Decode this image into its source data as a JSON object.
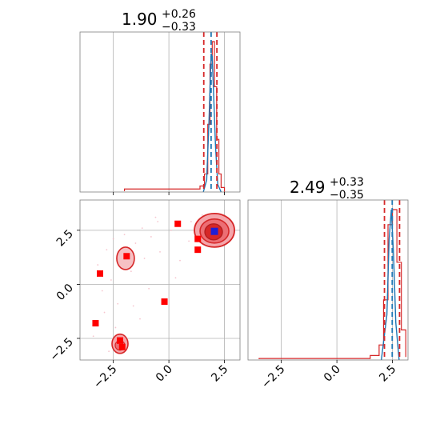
{
  "chart_data": {
    "type": "corner",
    "colors": {
      "posterior": "#d62728",
      "truth": "#1f77b4",
      "sample": "#ff0000",
      "grid": "#b0b0b0",
      "frame": "#808080"
    },
    "parameters": [
      {
        "median": 1.9,
        "plus": 0.26,
        "minus": 0.33,
        "title": "1.90",
        "title_plus": "+0.26",
        "title_minus": "−0.33"
      },
      {
        "median": 2.49,
        "plus": 0.33,
        "minus": 0.35,
        "title": "2.49",
        "title_plus": "+0.33",
        "title_minus": "−0.35"
      }
    ],
    "xlim_param1": [
      -4.0,
      3.2
    ],
    "xlim_param2": [
      -4.0,
      3.2
    ],
    "ylim_param2": [
      -3.5,
      3.9
    ],
    "ticks": [
      -2.5,
      0.0,
      2.5
    ],
    "tick_labels": [
      "−2.5",
      "0.0",
      "2.5"
    ],
    "grid": true,
    "hist1_red": {
      "x": [
        -2.0,
        -1.6,
        1.0,
        1.4,
        1.6,
        1.75,
        1.85,
        1.95,
        2.05,
        2.15,
        2.25,
        2.35,
        2.5
      ],
      "y": [
        0.02,
        0.02,
        0.02,
        0.04,
        0.12,
        0.45,
        0.85,
        1.0,
        0.7,
        0.35,
        0.12,
        0.03,
        0.0
      ]
    },
    "hist1_blue": {
      "x": [
        1.55,
        1.7,
        1.8,
        1.9,
        1.95,
        2.0,
        2.1,
        2.2,
        2.35
      ],
      "y": [
        0.0,
        0.08,
        0.45,
        0.92,
        0.9,
        0.7,
        0.3,
        0.05,
        0.0
      ]
    },
    "hist1_vlines_red": [
      1.57,
      2.16
    ],
    "hist1_vlines_blue": [
      1.9
    ],
    "hist2_red": {
      "x": [
        -3.5,
        -2.0,
        0.5,
        1.5,
        1.9,
        2.1,
        2.3,
        2.5,
        2.7,
        2.9,
        3.1
      ],
      "y": [
        0.01,
        0.01,
        0.01,
        0.03,
        0.1,
        0.4,
        0.9,
        1.0,
        0.65,
        0.2,
        0.02
      ]
    },
    "hist2_blue": {
      "x": [
        2.0,
        2.25,
        2.35,
        2.45,
        2.55,
        2.65,
        2.8
      ],
      "y": [
        0.0,
        0.3,
        0.8,
        1.0,
        0.7,
        0.25,
        0.0
      ]
    },
    "hist2_vlines_red": [
      2.14,
      2.82
    ],
    "hist2_vlines_blue": [
      2.49
    ],
    "samples": {
      "x": [
        0.4,
        -1.9,
        -3.1,
        -0.2,
        1.3,
        1.3,
        -3.3,
        -2.2,
        -2.1,
        -2.2
      ],
      "y": [
        2.8,
        1.3,
        0.5,
        -0.8,
        2.1,
        1.6,
        -1.8,
        -2.6,
        -2.9,
        -2.6
      ]
    },
    "truth_point": {
      "x": 2.05,
      "y": 2.45
    }
  }
}
